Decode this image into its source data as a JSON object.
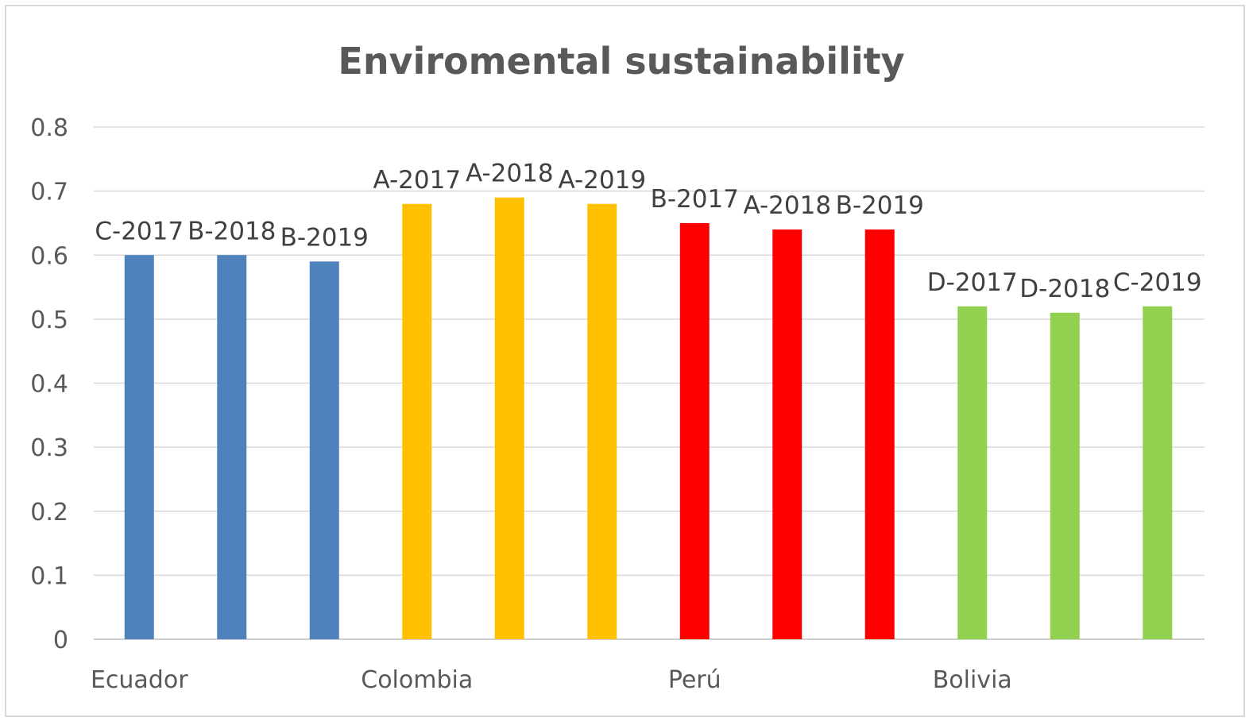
{
  "chart_data": {
    "type": "bar",
    "title": "Enviromental sustainability",
    "xlabel": "",
    "ylabel": "",
    "ylim": [
      0,
      0.8
    ],
    "yticks": [
      "0",
      "0.1",
      "0.2",
      "0.3",
      "0.4",
      "0.5",
      "0.6",
      "0.7",
      "0.8"
    ],
    "grid": true,
    "legend": "none",
    "categories": [
      "Ecuador",
      "Colombia",
      "Perú",
      "Bolivia"
    ],
    "colors": {
      "Ecuador": "#4f81bd",
      "Colombia": "#ffc000",
      "Perú": "#ff0000",
      "Bolivia": "#92d050"
    },
    "bars": [
      {
        "group": "Ecuador",
        "label": "C-2017",
        "value": 0.6
      },
      {
        "group": "Ecuador",
        "label": "B-2018",
        "value": 0.6
      },
      {
        "group": "Ecuador",
        "label": "B-2019",
        "value": 0.59
      },
      {
        "group": "Colombia",
        "label": "A-2017",
        "value": 0.68
      },
      {
        "group": "Colombia",
        "label": "A-2018",
        "value": 0.69
      },
      {
        "group": "Colombia",
        "label": "A-2019",
        "value": 0.68
      },
      {
        "group": "Perú",
        "label": "B-2017",
        "value": 0.65
      },
      {
        "group": "Perú",
        "label": "A-2018",
        "value": 0.64
      },
      {
        "group": "Perú",
        "label": "B-2019",
        "value": 0.64
      },
      {
        "group": "Bolivia",
        "label": "D-2017",
        "value": 0.52
      },
      {
        "group": "Bolivia",
        "label": "D-2018",
        "value": 0.51
      },
      {
        "group": "Bolivia",
        "label": "C-2019",
        "value": 0.52
      }
    ]
  }
}
